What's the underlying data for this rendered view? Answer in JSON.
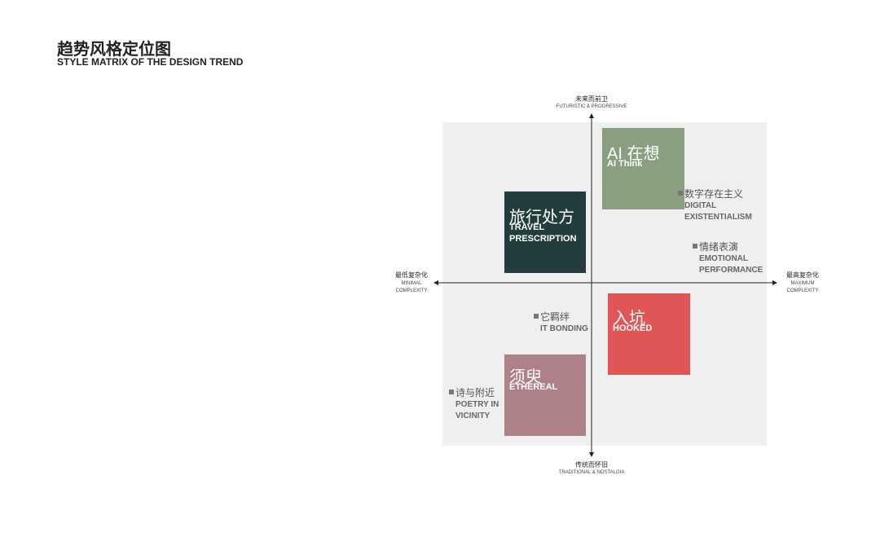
{
  "header": {
    "title": "趋势风格定位图",
    "subtitle": "STYLE MATRIX OF THE DESIGN TREND"
  },
  "axes": {
    "top": {
      "zh": "未来而前卫",
      "en": "FUTURISTIC & PROGRESSIVE"
    },
    "bottom": {
      "zh": "传统而怀旧",
      "en": "TRADITIONAL & NOSTALGIA"
    },
    "left": {
      "zh": "最低复杂化",
      "en": [
        "MINIMAL",
        "COMPLEXITY"
      ]
    },
    "right": {
      "zh": "最高复杂化",
      "en": [
        "MAXIMUM",
        "COMPLEXITY"
      ]
    }
  },
  "boxes": [
    {
      "zh": "AI 在想",
      "en": [
        "AI Think"
      ]
    },
    {
      "zh": "旅行处方",
      "en": [
        "TRAVEL",
        "PRESCRIPTION"
      ]
    },
    {
      "zh": "入坑",
      "en": [
        "HOOKED"
      ]
    },
    {
      "zh": "须臾",
      "en": [
        "ETHEREAL"
      ]
    }
  ],
  "labels": [
    {
      "zh": "数字存在主义",
      "en": [
        "DIGITAL",
        "EXISTENTIALISM"
      ]
    },
    {
      "zh": "情绪表演",
      "en": [
        "EMOTIONAL",
        "PERFORMANCE"
      ]
    },
    {
      "zh": "它羁绊",
      "en": [
        "IT BONDING"
      ]
    },
    {
      "zh": "诗与附近",
      "en": [
        "POETRY IN",
        "VICINITY"
      ]
    }
  ]
}
